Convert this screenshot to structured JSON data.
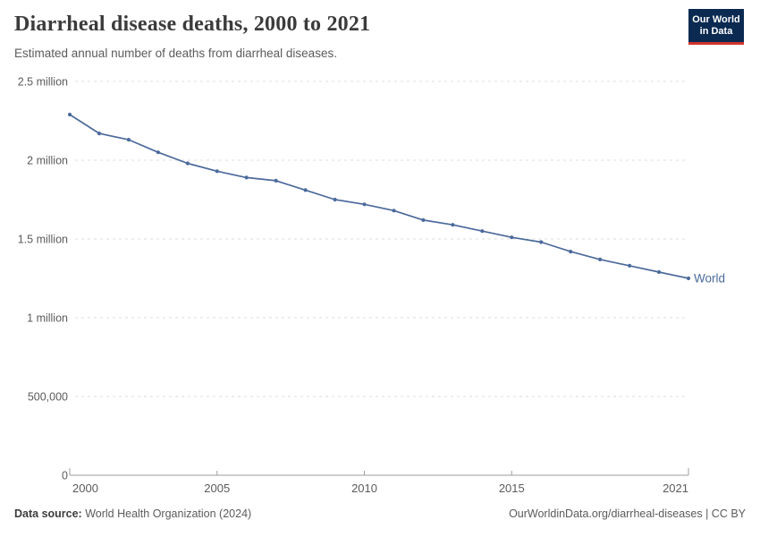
{
  "header": {
    "title": "Diarrheal disease deaths, 2000 to 2021",
    "subtitle": "Estimated annual number of deaths from diarrheal diseases."
  },
  "logo": {
    "line1": "Our World",
    "line2": "in Data",
    "bg_color": "#0b2a51",
    "accent_color": "#d0342c",
    "text_color": "#ffffff"
  },
  "chart_data": {
    "type": "line",
    "title": "Diarrheal disease deaths, 2000 to 2021",
    "subtitle": "Estimated annual number of deaths from diarrheal diseases.",
    "xlabel": "",
    "ylabel": "",
    "xlim": [
      2000,
      2021
    ],
    "ylim": [
      0,
      2500000
    ],
    "x": [
      2000,
      2001,
      2002,
      2003,
      2004,
      2005,
      2006,
      2007,
      2008,
      2009,
      2010,
      2011,
      2012,
      2013,
      2014,
      2015,
      2016,
      2017,
      2018,
      2019,
      2020,
      2021
    ],
    "series": [
      {
        "name": "World",
        "color": "#4C6A9C",
        "values": [
          2290000,
          2170000,
          2130000,
          2050000,
          1980000,
          1930000,
          1890000,
          1870000,
          1810000,
          1750000,
          1720000,
          1680000,
          1620000,
          1590000,
          1550000,
          1510000,
          1480000,
          1420000,
          1370000,
          1330000,
          1290000,
          1250000
        ]
      }
    ],
    "x_ticks": [
      2000,
      2005,
      2010,
      2015,
      2021
    ],
    "y_ticks": [
      {
        "value": 0,
        "label": "0"
      },
      {
        "value": 500000,
        "label": "500,000"
      },
      {
        "value": 1000000,
        "label": "1 million"
      },
      {
        "value": 1500000,
        "label": "1.5 million"
      },
      {
        "value": 2000000,
        "label": "2 million"
      },
      {
        "value": 2500000,
        "label": "2.5 million"
      }
    ],
    "grid": "horizontal-dashed",
    "legend": "end-of-line-label"
  },
  "footer": {
    "source_label": "Data source:",
    "source_text": " World Health Organization (2024)",
    "credit": "OurWorldinData.org/diarrheal-diseases | CC BY"
  },
  "colors": {
    "line": "#4C6A9C",
    "grid": "#dedede",
    "axis": "#9e9e9e",
    "tick_label": "#5b5b5b",
    "title": "#3b3b3b"
  }
}
